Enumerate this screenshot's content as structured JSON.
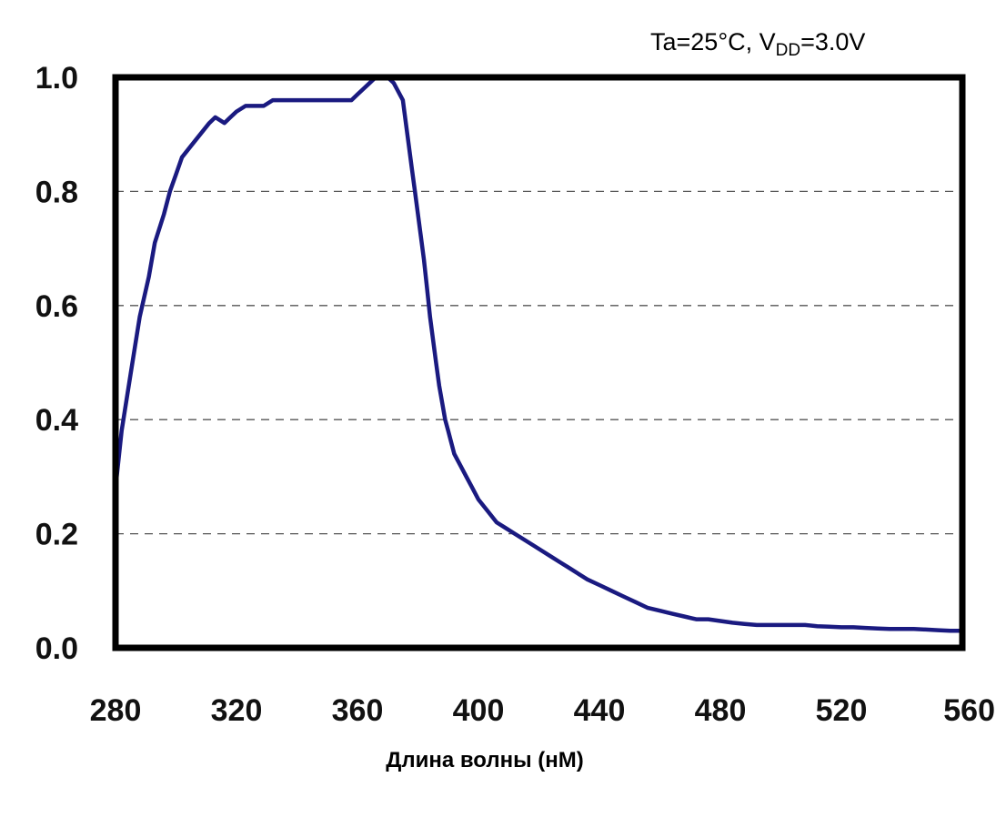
{
  "chart_data": {
    "type": "line",
    "xlabel": "Длина волны (нМ)",
    "ylabel": "",
    "annotation": {
      "prefix": "Ta=25°C, V",
      "subscript": "DD",
      "suffix": "=3.0V"
    },
    "xlim": [
      280,
      560
    ],
    "ylim": [
      0,
      1.0
    ],
    "x_ticks": [
      280,
      320,
      360,
      400,
      440,
      480,
      520,
      560
    ],
    "x_tick_labels": [
      "280",
      "320",
      "360",
      "400",
      "440",
      "480",
      "520",
      "560"
    ],
    "y_ticks": [
      0,
      0.2,
      0.4,
      0.6,
      0.8,
      1.0
    ],
    "y_tick_labels": [
      "0.0",
      "0.2",
      "0.4",
      "0.6",
      "0.8",
      "1.0"
    ],
    "grid": "horizontal-dashed",
    "colors": {
      "line": "#1a1a80",
      "frame": "#000000",
      "grid": "#555555"
    },
    "series": [
      {
        "x": [
          280,
          282,
          285,
          288,
          291,
          293,
          296,
          298,
          300,
          302,
          305,
          308,
          311,
          313,
          316,
          318,
          320,
          323,
          326,
          329,
          332,
          335,
          338,
          341,
          344,
          347,
          350,
          353,
          356,
          358,
          360,
          362,
          364,
          366,
          368,
          370,
          372,
          373,
          375,
          376,
          377,
          378,
          379,
          380,
          381,
          382,
          383,
          384,
          385,
          386,
          387,
          388,
          389,
          390,
          391,
          392,
          393,
          394,
          396,
          398,
          400,
          403,
          406,
          409,
          412,
          415,
          418,
          421,
          424,
          427,
          430,
          433,
          436,
          440,
          444,
          448,
          452,
          456,
          460,
          464,
          468,
          472,
          476,
          480,
          484,
          488,
          492,
          496,
          500,
          504,
          508,
          512,
          516,
          520,
          524,
          528,
          532,
          536,
          540,
          544,
          548,
          552,
          556,
          560
        ],
        "y": [
          0.28,
          0.38,
          0.48,
          0.58,
          0.65,
          0.71,
          0.76,
          0.8,
          0.83,
          0.86,
          0.88,
          0.9,
          0.92,
          0.93,
          0.92,
          0.93,
          0.94,
          0.95,
          0.95,
          0.95,
          0.96,
          0.96,
          0.96,
          0.96,
          0.96,
          0.96,
          0.96,
          0.96,
          0.96,
          0.96,
          0.97,
          0.98,
          0.99,
          1.0,
          1.0,
          1.0,
          0.99,
          0.98,
          0.96,
          0.92,
          0.88,
          0.84,
          0.8,
          0.76,
          0.72,
          0.68,
          0.63,
          0.58,
          0.54,
          0.5,
          0.46,
          0.43,
          0.4,
          0.38,
          0.36,
          0.34,
          0.33,
          0.32,
          0.3,
          0.28,
          0.26,
          0.24,
          0.22,
          0.21,
          0.2,
          0.19,
          0.18,
          0.17,
          0.16,
          0.15,
          0.14,
          0.13,
          0.12,
          0.11,
          0.1,
          0.09,
          0.08,
          0.07,
          0.065,
          0.06,
          0.055,
          0.05,
          0.05,
          0.047,
          0.044,
          0.042,
          0.04,
          0.04,
          0.04,
          0.04,
          0.04,
          0.038,
          0.037,
          0.036,
          0.036,
          0.035,
          0.034,
          0.033,
          0.033,
          0.033,
          0.032,
          0.031,
          0.03,
          0.03
        ]
      }
    ]
  }
}
